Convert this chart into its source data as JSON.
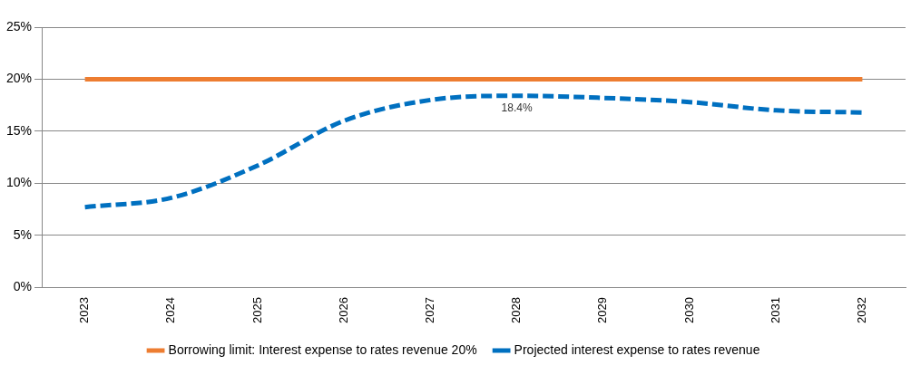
{
  "chart_data": {
    "type": "line",
    "categories": [
      "2023",
      "2024",
      "2025",
      "2026",
      "2027",
      "2028",
      "2029",
      "2030",
      "2031",
      "2032"
    ],
    "series": [
      {
        "name": "Borrowing limit: Interest expense to rates revenue 20%",
        "color": "#ed7d31",
        "values": [
          20,
          20,
          20,
          20,
          20,
          20,
          20,
          20,
          20,
          20
        ],
        "line_style": "solid"
      },
      {
        "name": "Projected interest expense to rates revenue",
        "color": "#0070c0",
        "values": [
          7.7,
          8.6,
          11.7,
          16.0,
          18.0,
          18.4,
          18.2,
          17.8,
          17.0,
          16.8
        ],
        "line_style": "dashed",
        "value_labels": [
          null,
          null,
          null,
          null,
          null,
          "18.4%",
          null,
          null,
          null,
          null
        ]
      }
    ],
    "ylim": [
      0,
      25
    ],
    "yticks": [
      {
        "value": 0,
        "label": "0%"
      },
      {
        "value": 5,
        "label": "5%"
      },
      {
        "value": 10,
        "label": "10%"
      },
      {
        "value": 15,
        "label": "15%"
      },
      {
        "value": 20,
        "label": "20%"
      },
      {
        "value": 25,
        "label": "25%"
      }
    ],
    "grid": "y",
    "legend": "bottom",
    "marker": "none"
  }
}
